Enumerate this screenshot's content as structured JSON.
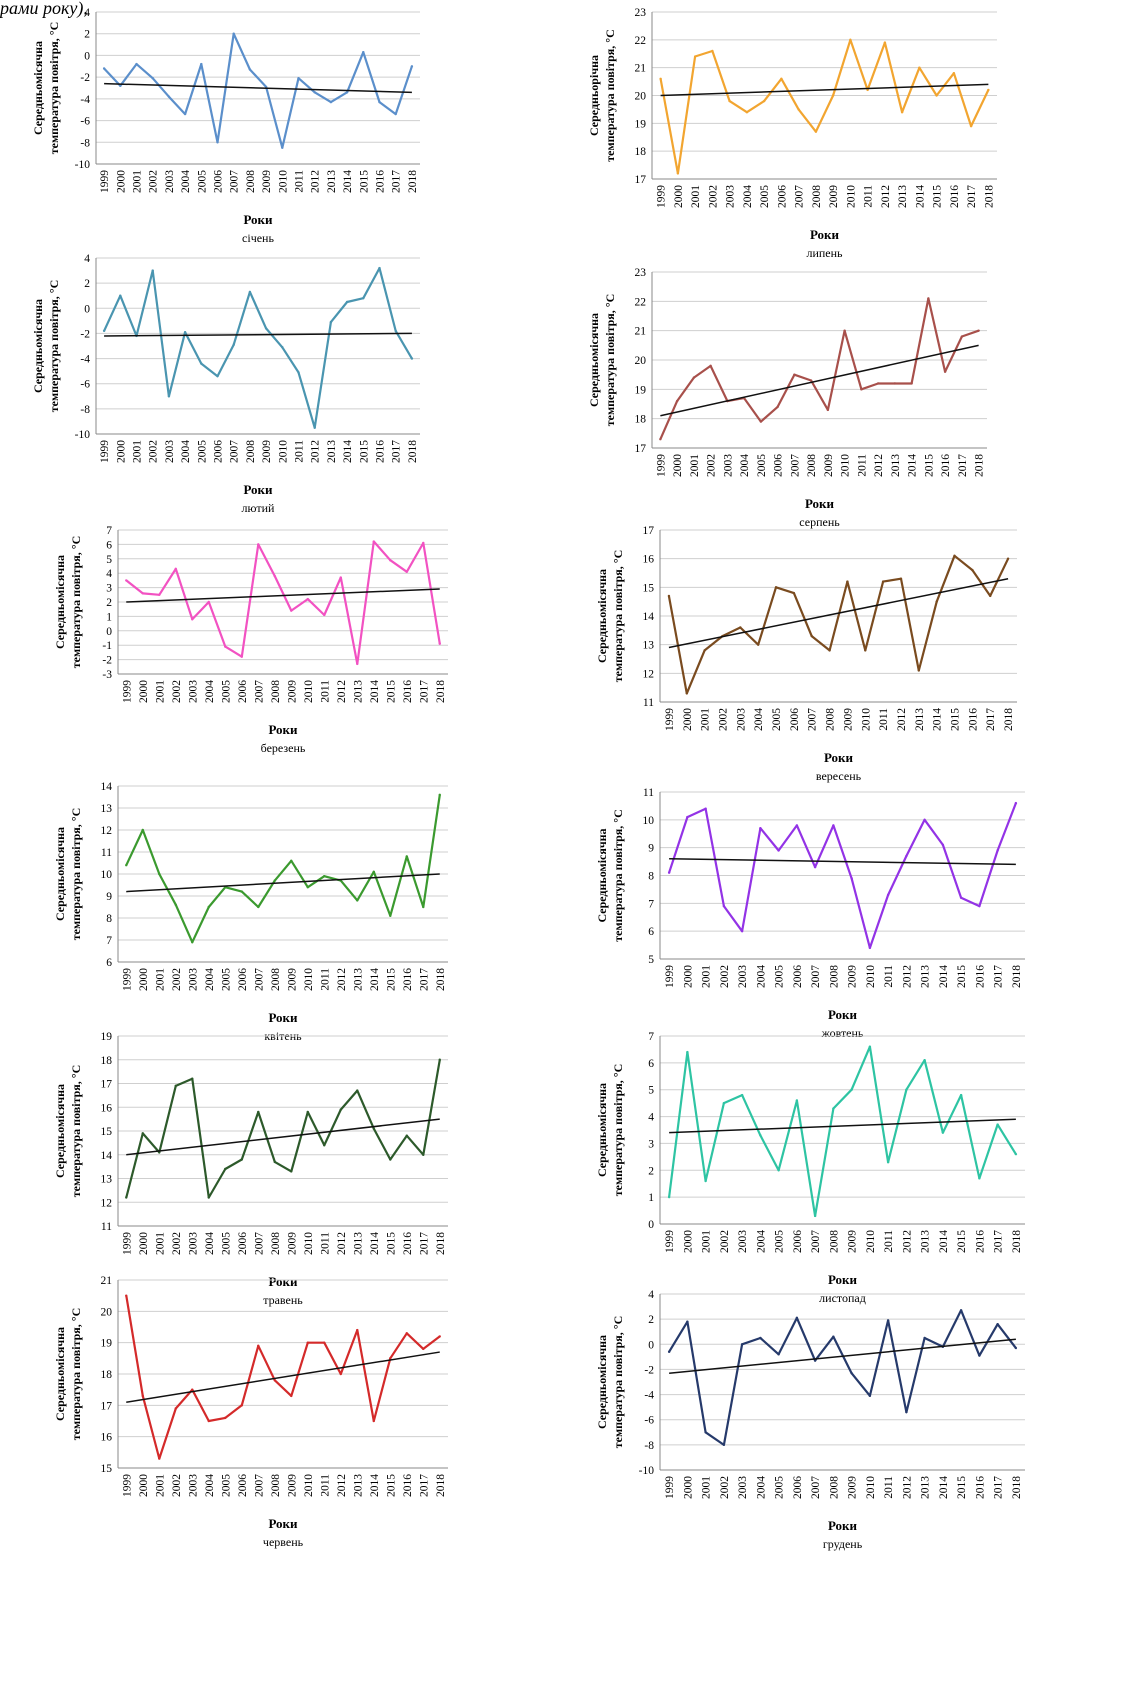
{
  "header_fragment": "рами року),",
  "chart_data": [
    {
      "type": "line",
      "month": "січень",
      "xlabel": "Роки",
      "ylabel_line1": "Середньомісячна",
      "ylabel_line2": "температура повітря, °C",
      "ylim": [
        -10,
        4
      ],
      "ytick_step": 2,
      "color": "#5b8fcb",
      "x": [
        "1999",
        "2000",
        "2001",
        "2002",
        "2003",
        "2004",
        "2005",
        "2006",
        "2007",
        "2008",
        "2009",
        "2010",
        "2011",
        "2012",
        "2013",
        "2014",
        "2015",
        "2016",
        "2017",
        "2018"
      ],
      "values": [
        -1.2,
        -2.8,
        -0.8,
        -2.1,
        -3.8,
        -5.4,
        -0.8,
        -8.0,
        2.0,
        -1.3,
        -2.9,
        -8.5,
        -2.1,
        -3.4,
        -4.3,
        -3.4,
        0.3,
        -4.3,
        -5.4,
        -1.0
      ],
      "trend": [
        -2.6,
        -3.4
      ]
    },
    {
      "type": "line",
      "month": "лютий",
      "xlabel": "Роки",
      "ylabel_line1": "Середньомісячна",
      "ylabel_line2": "температура повітря, °C",
      "ylim": [
        -10,
        4
      ],
      "ytick_step": 2,
      "color": "#4a95b0",
      "x": [
        "1999",
        "2000",
        "2001",
        "2002",
        "2003",
        "2004",
        "2005",
        "2006",
        "2007",
        "2008",
        "2009",
        "2010",
        "2011",
        "2012",
        "2013",
        "2014",
        "2015",
        "2016",
        "2017",
        "2018"
      ],
      "values": [
        -1.8,
        1.0,
        -2.2,
        3.0,
        -7.0,
        -1.9,
        -4.4,
        -5.4,
        -2.9,
        1.3,
        -1.6,
        -3.1,
        -5.1,
        -9.5,
        -1.1,
        0.5,
        0.8,
        3.2,
        -1.8,
        -4.0
      ],
      "trend": [
        -2.2,
        -2.0
      ]
    },
    {
      "type": "line",
      "month": "березень",
      "xlabel": "Роки",
      "ylabel_line1": "Середньомісячна",
      "ylabel_line2": "температура повітря, °C",
      "ylim": [
        -3,
        7
      ],
      "ytick_step": 1,
      "color": "#f252c2",
      "x": [
        "1999",
        "2000",
        "2001",
        "2002",
        "2003",
        "2004",
        "2005",
        "2006",
        "2007",
        "2008",
        "2009",
        "2010",
        "2011",
        "2012",
        "2013",
        "2014",
        "2015",
        "2016",
        "2017",
        "2018"
      ],
      "values": [
        3.5,
        2.6,
        2.5,
        4.3,
        0.8,
        2.0,
        -1.1,
        -1.8,
        6.0,
        3.8,
        1.4,
        2.2,
        1.1,
        3.7,
        -2.3,
        6.2,
        4.9,
        4.1,
        6.1,
        -0.9
      ],
      "trend": [
        2.0,
        2.9
      ]
    },
    {
      "type": "line",
      "month": "квітень",
      "xlabel": "Роки",
      "ylabel_line1": "Середньомісячна",
      "ylabel_line2": "температура повітря, °C",
      "ylim": [
        6,
        14
      ],
      "ytick_step": 1,
      "color": "#3b9a2f",
      "x": [
        "1999",
        "2000",
        "2001",
        "2002",
        "2003",
        "2004",
        "2005",
        "2006",
        "2007",
        "2008",
        "2009",
        "2010",
        "2011",
        "2012",
        "2013",
        "2014",
        "2015",
        "2016",
        "2017",
        "2018"
      ],
      "values": [
        10.4,
        12.0,
        10.0,
        8.6,
        6.9,
        8.5,
        9.4,
        9.2,
        8.5,
        9.7,
        10.6,
        9.4,
        9.9,
        9.7,
        8.8,
        10.1,
        8.1,
        10.8,
        8.5,
        13.6
      ],
      "trend": [
        9.2,
        10.0
      ]
    },
    {
      "type": "line",
      "month": "травень",
      "xlabel": "Роки",
      "ylabel_line1": "Середньомісячна",
      "ylabel_line2": "температура повітря, °C",
      "ylim": [
        11,
        19
      ],
      "ytick_step": 1,
      "color": "#2d5a2b",
      "x": [
        "1999",
        "2000",
        "2001",
        "2002",
        "2003",
        "2004",
        "2005",
        "2006",
        "2007",
        "2008",
        "2009",
        "2010",
        "2011",
        "2012",
        "2013",
        "2014",
        "2015",
        "2016",
        "2017",
        "2018"
      ],
      "values": [
        12.2,
        14.9,
        14.1,
        16.9,
        17.2,
        12.2,
        13.4,
        13.8,
        15.8,
        13.7,
        13.3,
        15.8,
        14.4,
        15.9,
        16.7,
        15.1,
        13.8,
        14.8,
        14.0,
        18.0
      ],
      "trend": [
        14.0,
        15.5
      ]
    },
    {
      "type": "line",
      "month": "червень",
      "xlabel": "Роки",
      "ylabel_line1": "Середньомісячна",
      "ylabel_line2": "температура повітря, °C",
      "ylim": [
        15,
        21
      ],
      "ytick_step": 1,
      "color": "#d42a2a",
      "x": [
        "1999",
        "2000",
        "2001",
        "2002",
        "2003",
        "2004",
        "2005",
        "2006",
        "2007",
        "2008",
        "2009",
        "2010",
        "2011",
        "2012",
        "2013",
        "2014",
        "2015",
        "2016",
        "2017",
        "2018"
      ],
      "values": [
        20.5,
        17.3,
        15.3,
        16.9,
        17.5,
        16.5,
        16.6,
        17.0,
        18.9,
        17.8,
        17.3,
        19.0,
        19.0,
        18.0,
        19.4,
        16.5,
        18.5,
        19.3,
        18.8,
        19.2
      ],
      "trend": [
        17.1,
        18.7
      ]
    },
    {
      "type": "line",
      "month": "липень",
      "xlabel": "Роки",
      "ylabel_line1": "Середньорічна",
      "ylabel_line2": "температура повітря, °C",
      "ylim": [
        17,
        23
      ],
      "ytick_step": 1,
      "color": "#f2a530",
      "x": [
        "1999",
        "2000",
        "2001",
        "2002",
        "2003",
        "2004",
        "2005",
        "2006",
        "2007",
        "2008",
        "2009",
        "2010",
        "2011",
        "2012",
        "2013",
        "2014",
        "2015",
        "2016",
        "2017",
        "2018"
      ],
      "values": [
        20.6,
        17.2,
        21.4,
        21.6,
        19.8,
        19.4,
        19.8,
        20.6,
        19.5,
        18.7,
        20.0,
        22.0,
        20.2,
        21.9,
        19.4,
        21.0,
        20.0,
        20.8,
        18.9,
        20.2
      ],
      "trend": [
        20.0,
        20.4
      ]
    },
    {
      "type": "line",
      "month": "серпень",
      "xlabel": "Роки",
      "ylabel_line1": "Середньомісячна",
      "ylabel_line2": "температура повітря, °C",
      "ylim": [
        17,
        23
      ],
      "ytick_step": 1,
      "color": "#a8504b",
      "x": [
        "1999",
        "2000",
        "2001",
        "2002",
        "2003",
        "2004",
        "2005",
        "2006",
        "2007",
        "2008",
        "2009",
        "2010",
        "2011",
        "2012",
        "2013",
        "2014",
        "2015",
        "2016",
        "2017",
        "2018"
      ],
      "values": [
        17.3,
        18.6,
        19.4,
        19.8,
        18.6,
        18.7,
        17.9,
        18.4,
        19.5,
        19.3,
        18.3,
        21.0,
        19.0,
        19.2,
        19.2,
        19.2,
        22.1,
        19.6,
        20.8,
        21.0
      ],
      "trend": [
        18.1,
        20.5
      ]
    },
    {
      "type": "line",
      "month": "вересень",
      "xlabel": "Роки",
      "ylabel_line1": "Середньомісячна",
      "ylabel_line2": "температура повітря, °C",
      "ylim": [
        11,
        17
      ],
      "ytick_step": 1,
      "color": "#7a4b1f",
      "x": [
        "1999",
        "2000",
        "2001",
        "2002",
        "2003",
        "2004",
        "2005",
        "2006",
        "2007",
        "2008",
        "2009",
        "2010",
        "2011",
        "2012",
        "2013",
        "2014",
        "2015",
        "2016",
        "2017",
        "2018"
      ],
      "values": [
        14.7,
        11.3,
        12.8,
        13.3,
        13.6,
        13.0,
        15.0,
        14.8,
        13.3,
        12.8,
        15.2,
        12.8,
        15.2,
        15.3,
        12.1,
        14.5,
        16.1,
        15.6,
        14.7,
        16.0
      ],
      "trend": [
        12.9,
        15.3
      ]
    },
    {
      "type": "line",
      "month": "жовтень",
      "xlabel": "Роки",
      "ylabel_line1": "Середньомісячна",
      "ylabel_line2": "температура повітря, °C",
      "ylim": [
        5,
        11
      ],
      "ytick_step": 1,
      "color": "#9333e6",
      "x": [
        "1999",
        "2000",
        "2001",
        "2002",
        "2003",
        "2004",
        "2005",
        "2006",
        "2007",
        "2008",
        "2009",
        "2010",
        "2011",
        "2012",
        "2013",
        "2014",
        "2015",
        "2016",
        "2017",
        "2018"
      ],
      "values": [
        8.1,
        10.1,
        10.4,
        6.9,
        6.0,
        9.7,
        8.9,
        9.8,
        8.3,
        9.8,
        7.9,
        5.4,
        7.3,
        8.7,
        10.0,
        9.1,
        7.2,
        6.9,
        8.9,
        10.6
      ],
      "trend": [
        8.6,
        8.4
      ]
    },
    {
      "type": "line",
      "month": "листопад",
      "xlabel": "Роки",
      "ylabel_line1": "Середньомісячна",
      "ylabel_line2": "температура повітря, °C",
      "ylim": [
        0,
        7
      ],
      "ytick_step": 1,
      "color": "#2ec4a3",
      "x": [
        "1999",
        "2000",
        "2001",
        "2002",
        "2003",
        "2004",
        "2005",
        "2006",
        "2007",
        "2008",
        "2009",
        "2010",
        "2011",
        "2012",
        "2013",
        "2014",
        "2015",
        "2016",
        "2017",
        "2018"
      ],
      "values": [
        1.0,
        6.4,
        1.6,
        4.5,
        4.8,
        3.3,
        2.0,
        4.6,
        0.3,
        4.3,
        5.0,
        6.6,
        2.3,
        5.0,
        6.1,
        3.4,
        4.8,
        1.7,
        3.7,
        2.6
      ],
      "trend": [
        3.4,
        3.9
      ]
    },
    {
      "type": "line",
      "month": "грудень",
      "xlabel": "Роки",
      "ylabel_line1": "Середньомісячна",
      "ylabel_line2": "температура повітря, °C",
      "ylim": [
        -10,
        4
      ],
      "ytick_step": 2,
      "color": "#263a6b",
      "x": [
        "1999",
        "2000",
        "2001",
        "2002",
        "2003",
        "2004",
        "2005",
        "2006",
        "2007",
        "2008",
        "2009",
        "2010",
        "2011",
        "2012",
        "2013",
        "2014",
        "2015",
        "2016",
        "2017",
        "2018"
      ],
      "values": [
        -0.6,
        1.8,
        -7.0,
        -8.0,
        0.0,
        0.5,
        -0.8,
        2.1,
        -1.3,
        0.6,
        -2.3,
        -4.1,
        1.9,
        -5.4,
        0.5,
        -0.2,
        2.7,
        -0.9,
        1.6,
        -0.3
      ],
      "trend": [
        -2.3,
        0.4
      ]
    }
  ]
}
